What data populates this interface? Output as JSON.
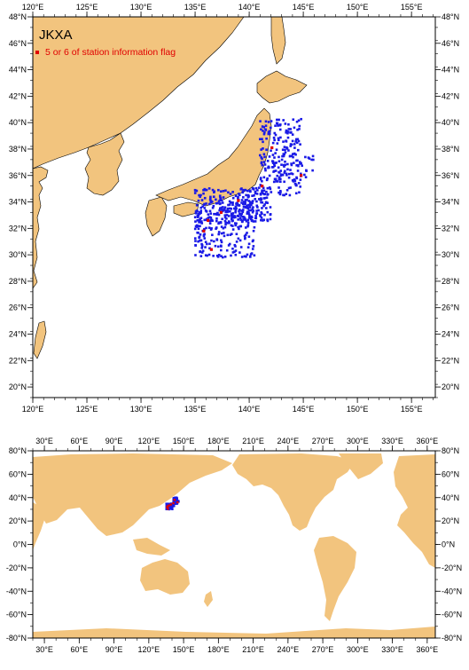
{
  "title": "JKXA",
  "legend": {
    "label": "5 or 6 of station information flag",
    "color": "#e00000"
  },
  "colors": {
    "land": "#f2c47e",
    "sea": "#ffffff",
    "obs_normal": "#1a1ae6",
    "obs_flagged": "#e00000"
  },
  "top_map": {
    "lon_ticks": [
      "120°E",
      "125°E",
      "130°E",
      "135°E",
      "140°E",
      "145°E",
      "150°E",
      "155°E"
    ],
    "lat_ticks": [
      "48°N",
      "46°N",
      "44°N",
      "42°N",
      "40°N",
      "38°N",
      "36°N",
      "34°N",
      "32°N",
      "30°N",
      "28°N",
      "26°N",
      "24°N",
      "22°N",
      "20°N"
    ]
  },
  "bottom_map": {
    "lon_ticks": [
      "30°E",
      "60°E",
      "90°E",
      "120°E",
      "150°E",
      "180°E",
      "210°E",
      "240°E",
      "270°E",
      "300°E",
      "330°E",
      "360°E"
    ],
    "lat_ticks": [
      "80°N",
      "60°N",
      "40°N",
      "20°N",
      "0°N",
      "-20°N",
      "-40°N",
      "-60°N",
      "-80°N"
    ]
  }
}
